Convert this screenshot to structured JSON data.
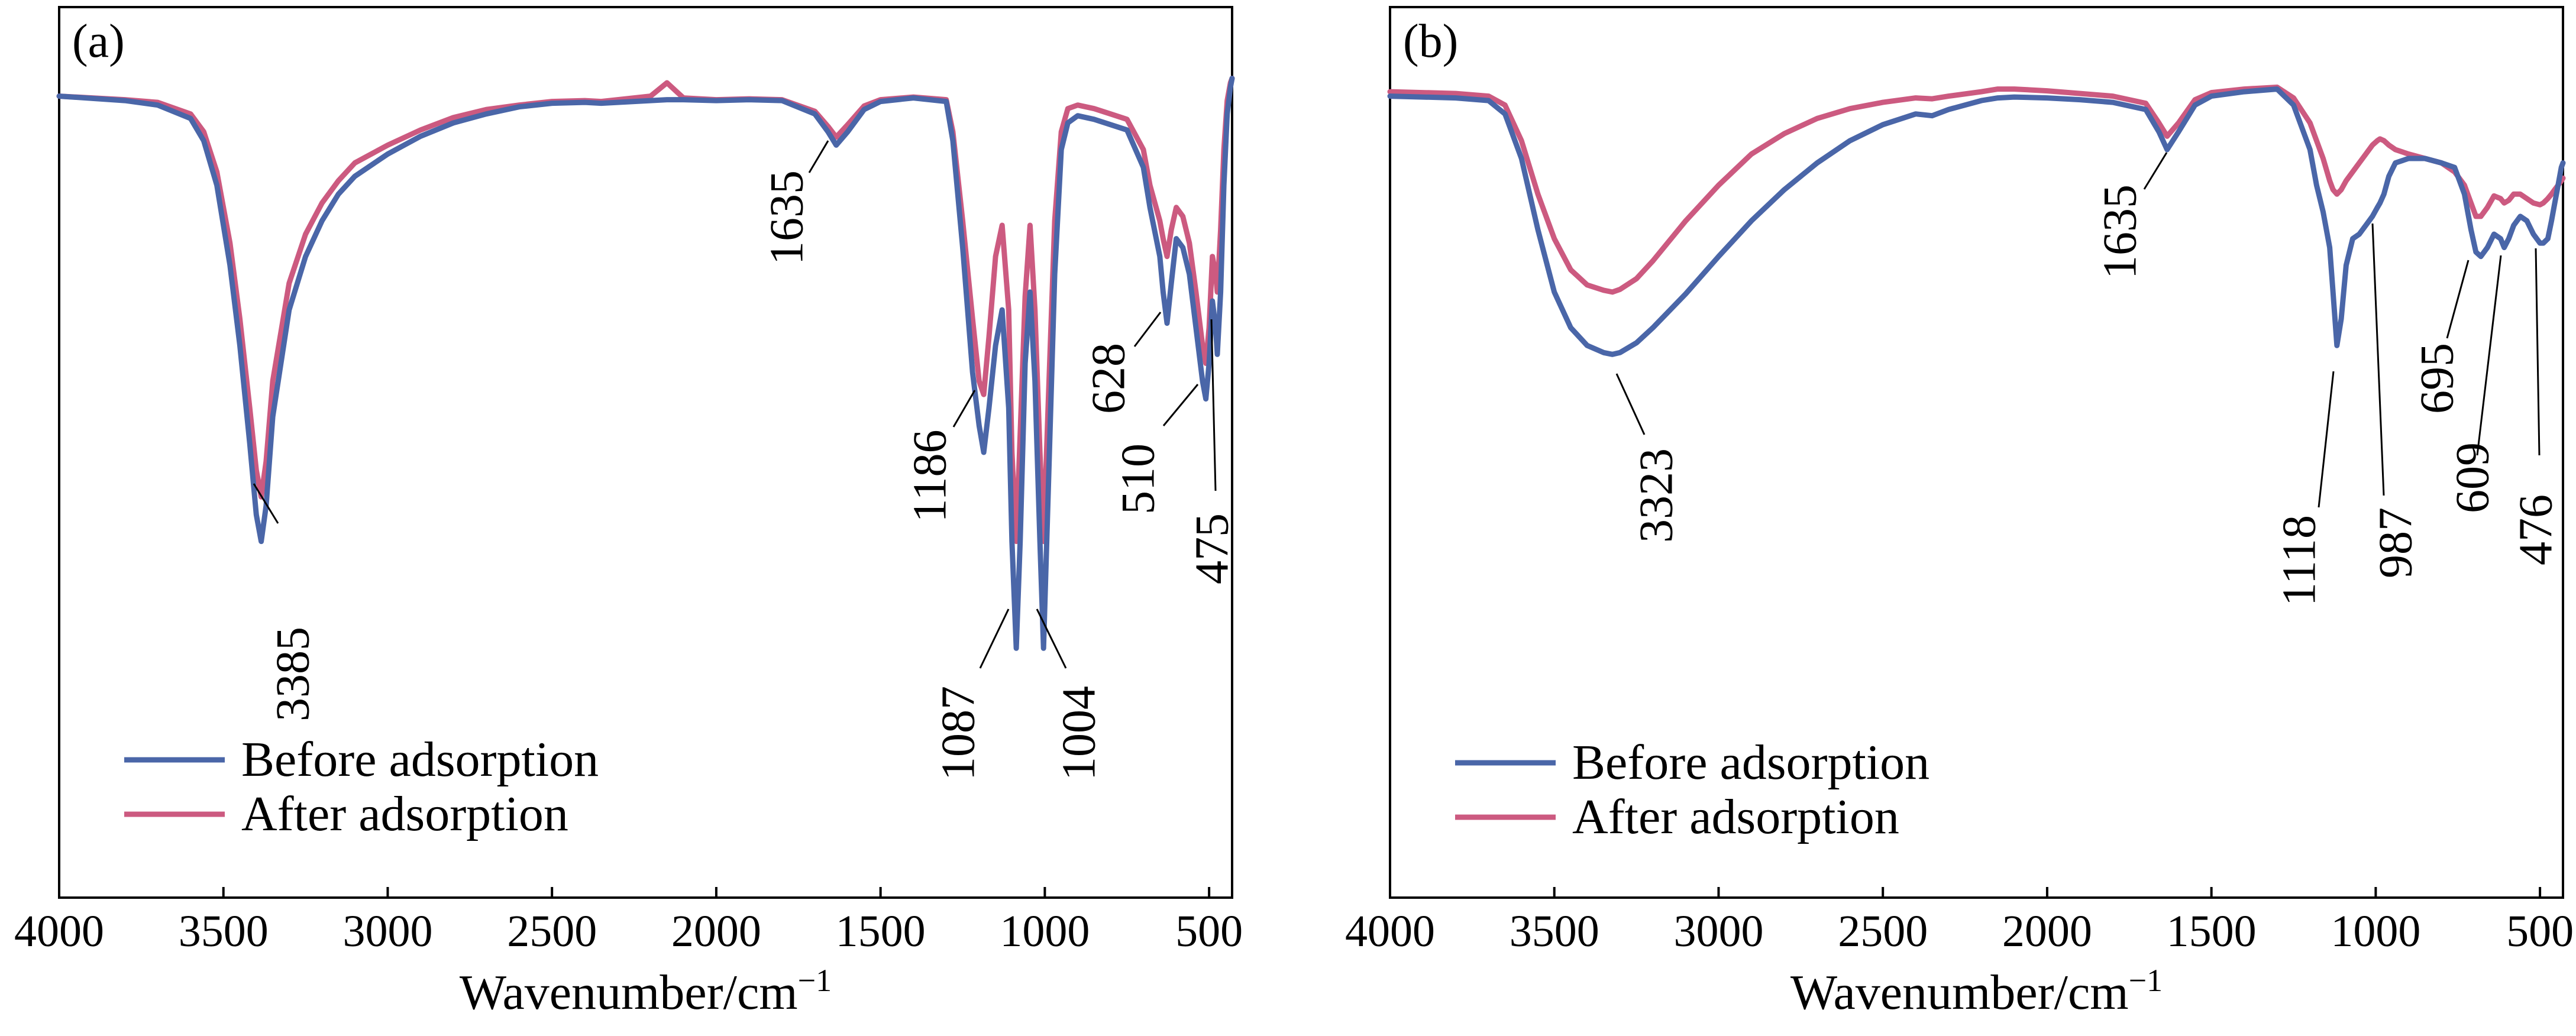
{
  "colors": {
    "before": "#4a66a8",
    "after": "#cc5a80"
  },
  "x_ticks": [
    "4000",
    "3500",
    "3000",
    "2500",
    "2000",
    "1500",
    "1000",
    "500"
  ],
  "chart_data": [
    {
      "type": "line",
      "panel": "(a)",
      "xlabel": "Wavenumber/cm",
      "xlabel_sup": "−1",
      "ylabel": "",
      "xlim": [
        4000,
        430
      ],
      "ylim": [
        0,
        100
      ],
      "xdir": "reversed",
      "legend_position": "bottom-left",
      "legend": [
        "Before adsorption",
        "After adsorption"
      ],
      "peaks": [
        "3385",
        "1635",
        "1186",
        "1087",
        "1004",
        "628",
        "510",
        "475"
      ],
      "series": [
        {
          "name": "Before adsorption",
          "x": [
            4000,
            3800,
            3700,
            3600,
            3560,
            3520,
            3480,
            3450,
            3420,
            3400,
            3385,
            3370,
            3350,
            3300,
            3250,
            3200,
            3150,
            3100,
            3000,
            2900,
            2800,
            2700,
            2600,
            2500,
            2400,
            2350,
            2300,
            2200,
            2150,
            2100,
            2000,
            1900,
            1800,
            1700,
            1660,
            1635,
            1600,
            1550,
            1500,
            1400,
            1300,
            1280,
            1250,
            1220,
            1200,
            1186,
            1170,
            1150,
            1130,
            1110,
            1100,
            1087,
            1075,
            1060,
            1045,
            1030,
            1015,
            1004,
            990,
            970,
            950,
            930,
            900,
            850,
            800,
            750,
            700,
            680,
            650,
            640,
            628,
            615,
            600,
            580,
            560,
            540,
            520,
            510,
            500,
            490,
            480,
            475,
            465,
            455,
            445,
            435,
            430
          ],
          "y": [
            90.0,
            89.5,
            89.0,
            87.5,
            85.0,
            80.0,
            71.0,
            62.0,
            51.0,
            43.0,
            40.0,
            44.0,
            54.0,
            66.0,
            72.0,
            76.0,
            79.0,
            81.0,
            83.5,
            85.5,
            87.0,
            88.0,
            88.8,
            89.2,
            89.3,
            89.2,
            89.3,
            89.5,
            89.6,
            89.6,
            89.5,
            89.6,
            89.5,
            88.0,
            86.0,
            84.5,
            86.0,
            88.5,
            89.4,
            89.8,
            89.4,
            85.0,
            73.0,
            59.0,
            53.0,
            50.0,
            55.0,
            62.0,
            66.0,
            55.0,
            40.0,
            28.0,
            40.0,
            60.0,
            68.0,
            58.0,
            40.0,
            28.0,
            45.0,
            70.0,
            84.0,
            87.0,
            87.8,
            87.4,
            86.8,
            86.2,
            82.0,
            77.5,
            72.0,
            68.0,
            64.5,
            69.0,
            74.0,
            73.0,
            70.0,
            64.0,
            58.0,
            56.0,
            60.0,
            67.0,
            64.0,
            61.0,
            68.0,
            80.0,
            88.0,
            91.0,
            92.0
          ]
        },
        {
          "name": "After adsorption",
          "x": [
            4000,
            3800,
            3700,
            3600,
            3560,
            3520,
            3480,
            3450,
            3420,
            3400,
            3385,
            3370,
            3350,
            3300,
            3250,
            3200,
            3150,
            3100,
            3000,
            2900,
            2800,
            2700,
            2600,
            2500,
            2400,
            2350,
            2300,
            2200,
            2150,
            2100,
            2000,
            1900,
            1800,
            1700,
            1660,
            1635,
            1600,
            1550,
            1500,
            1400,
            1300,
            1280,
            1250,
            1220,
            1200,
            1186,
            1170,
            1150,
            1130,
            1110,
            1100,
            1087,
            1075,
            1060,
            1045,
            1030,
            1015,
            1004,
            990,
            970,
            950,
            930,
            900,
            850,
            800,
            750,
            700,
            680,
            650,
            640,
            628,
            615,
            600,
            580,
            560,
            540,
            520,
            510,
            500,
            490,
            480,
            475,
            465,
            455,
            445,
            435,
            430
          ],
          "y": [
            90.0,
            89.6,
            89.3,
            88.0,
            86.0,
            81.5,
            73.5,
            65.0,
            55.0,
            48.0,
            45.0,
            49.0,
            58.0,
            69.0,
            74.5,
            78.0,
            80.5,
            82.5,
            84.5,
            86.2,
            87.6,
            88.5,
            89.0,
            89.4,
            89.5,
            89.4,
            89.6,
            90.0,
            91.5,
            89.8,
            89.6,
            89.7,
            89.6,
            88.3,
            86.6,
            85.4,
            86.8,
            88.9,
            89.6,
            89.9,
            89.6,
            86.0,
            76.0,
            65.0,
            58.0,
            56.5,
            63.0,
            72.0,
            75.5,
            66.0,
            50.0,
            40.0,
            52.0,
            67.5,
            75.5,
            66.0,
            50.0,
            40.0,
            55.0,
            76.0,
            86.0,
            88.6,
            89.0,
            88.6,
            88.0,
            87.4,
            84.0,
            80.0,
            76.0,
            74.0,
            72.0,
            75.0,
            77.5,
            76.5,
            73.5,
            68.0,
            62.0,
            60.0,
            64.0,
            72.0,
            70.0,
            68.0,
            75.0,
            84.0,
            89.5,
            91.5,
            92.0
          ]
        }
      ]
    },
    {
      "type": "line",
      "panel": "(b)",
      "xlabel": "Wavenumber/cm",
      "xlabel_sup": "−1",
      "ylabel": "",
      "xlim": [
        4000,
        430
      ],
      "ylim": [
        0,
        100
      ],
      "xdir": "reversed",
      "legend_position": "bottom-left",
      "legend": [
        "Before adsorption",
        "After adsorption"
      ],
      "peaks": [
        "1635",
        "3323",
        "1118",
        "987",
        "695",
        "609",
        "476"
      ],
      "series": [
        {
          "name": "Before adsorption",
          "x": [
            4000,
            3800,
            3700,
            3650,
            3600,
            3550,
            3500,
            3450,
            3400,
            3350,
            3323,
            3300,
            3250,
            3200,
            3100,
            3000,
            2900,
            2800,
            2700,
            2600,
            2500,
            2400,
            2350,
            2300,
            2200,
            2150,
            2100,
            2000,
            1900,
            1800,
            1700,
            1660,
            1635,
            1600,
            1550,
            1500,
            1400,
            1300,
            1250,
            1200,
            1180,
            1160,
            1140,
            1130,
            1118,
            1105,
            1090,
            1070,
            1050,
            1030,
            1010,
            995,
            987,
            975,
            960,
            940,
            900,
            850,
            800,
            760,
            730,
            710,
            695,
            680,
            660,
            640,
            620,
            609,
            595,
            580,
            560,
            540,
            520,
            500,
            490,
            476,
            465,
            455,
            445,
            435,
            430
          ],
          "y": [
            90.0,
            89.8,
            89.5,
            88.0,
            83.0,
            75.0,
            68.0,
            64.0,
            62.0,
            61.2,
            61.0,
            61.2,
            62.3,
            64.0,
            67.8,
            72.0,
            76.0,
            79.5,
            82.5,
            85.0,
            86.8,
            88.0,
            87.8,
            88.5,
            89.5,
            89.8,
            89.9,
            89.8,
            89.6,
            89.3,
            88.5,
            86.0,
            84.0,
            86.0,
            89.0,
            90.0,
            90.5,
            90.8,
            89.0,
            84.0,
            80.0,
            77.0,
            73.0,
            68.0,
            62.0,
            65.0,
            71.0,
            74.0,
            74.5,
            75.5,
            76.5,
            77.5,
            78.0,
            79.0,
            81.0,
            82.5,
            83.0,
            83.0,
            82.5,
            82.0,
            79.0,
            75.0,
            72.5,
            72.0,
            73.0,
            74.5,
            74.0,
            73.0,
            74.0,
            75.5,
            76.5,
            76.0,
            74.5,
            73.5,
            73.5,
            74.0,
            76.0,
            78.0,
            80.0,
            82.0,
            82.5
          ]
        },
        {
          "name": "After adsorption",
          "x": [
            4000,
            3800,
            3700,
            3650,
            3600,
            3550,
            3500,
            3450,
            3400,
            3350,
            3323,
            3300,
            3250,
            3200,
            3100,
            3000,
            2900,
            2800,
            2700,
            2600,
            2500,
            2400,
            2350,
            2300,
            2200,
            2150,
            2100,
            2000,
            1900,
            1800,
            1700,
            1660,
            1635,
            1600,
            1550,
            1500,
            1400,
            1300,
            1250,
            1200,
            1180,
            1160,
            1140,
            1130,
            1118,
            1105,
            1090,
            1070,
            1050,
            1030,
            1010,
            995,
            987,
            975,
            960,
            940,
            900,
            850,
            800,
            760,
            730,
            710,
            695,
            680,
            660,
            640,
            620,
            609,
            595,
            580,
            560,
            540,
            520,
            500,
            490,
            476,
            465,
            455,
            445,
            435,
            430
          ],
          "y": [
            90.5,
            90.3,
            90.0,
            89.0,
            85.0,
            79.0,
            74.0,
            70.5,
            68.8,
            68.2,
            68.0,
            68.3,
            69.5,
            71.5,
            76.0,
            80.0,
            83.5,
            85.8,
            87.5,
            88.6,
            89.3,
            89.8,
            89.7,
            90.0,
            90.5,
            90.8,
            90.8,
            90.6,
            90.3,
            90.0,
            89.2,
            87.0,
            85.5,
            87.0,
            89.6,
            90.4,
            90.8,
            91.0,
            89.8,
            87.0,
            85.0,
            83.0,
            80.5,
            79.5,
            79.0,
            79.5,
            80.5,
            81.5,
            82.5,
            83.5,
            84.5,
            85.0,
            85.2,
            85.0,
            84.5,
            84.0,
            83.5,
            83.0,
            82.5,
            81.5,
            80.0,
            78.0,
            76.5,
            76.5,
            77.5,
            78.8,
            78.5,
            78.0,
            78.3,
            79.0,
            79.0,
            78.5,
            78.0,
            77.8,
            78.0,
            78.5,
            79.0,
            79.5,
            80.0,
            80.5,
            80.8
          ]
        }
      ]
    }
  ]
}
